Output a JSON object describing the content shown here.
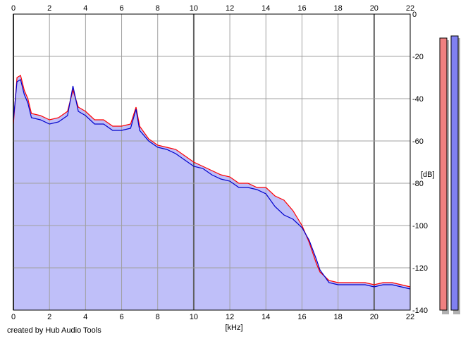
{
  "credit": "created by Hub Audio Tools",
  "chart_data": {
    "type": "area",
    "xlabel": "[kHz]",
    "ylabel": "[dB]",
    "xlim": [
      0,
      22
    ],
    "ylim": [
      -140,
      0
    ],
    "x_ticks": [
      0,
      2,
      4,
      6,
      8,
      10,
      12,
      14,
      16,
      18,
      20,
      22
    ],
    "y_ticks": [
      0,
      -20,
      -40,
      -60,
      -80,
      -100,
      -120,
      -140
    ],
    "y_tick_labels": [
      "0",
      "-20",
      "-40",
      "-60",
      "-80",
      "-100",
      "-120",
      "-140"
    ],
    "grid": true,
    "colors": {
      "fill": "#bfbff9",
      "left_channel": "#ff0000",
      "right_channel": "#0000cc",
      "grid": "#a0a0a0",
      "grid_major": "#606060"
    },
    "series": [
      {
        "color": "#ff0000",
        "x": [
          0,
          0.2,
          0.4,
          0.6,
          0.8,
          1,
          1.5,
          2,
          2.5,
          3,
          3.3,
          3.6,
          4,
          4.5,
          5,
          5.5,
          6,
          6.5,
          6.8,
          7,
          7.5,
          8,
          8.5,
          9,
          9.5,
          10,
          10.5,
          11,
          11.5,
          12,
          12.5,
          13,
          13.5,
          14,
          14.5,
          15,
          15.5,
          16,
          16.4,
          16.8,
          17,
          17.5,
          18,
          18.5,
          19,
          19.5,
          20,
          20.5,
          21,
          21.5,
          22
        ],
        "values": [
          -52,
          -30,
          -29,
          -36,
          -40,
          -47,
          -48,
          -50,
          -49,
          -46,
          -36,
          -44,
          -46,
          -50,
          -50,
          -53,
          -53,
          -52,
          -44,
          -53,
          -59,
          -62,
          -63,
          -64,
          -67,
          -70,
          -72,
          -74,
          -76,
          -77,
          -80,
          -80,
          -82,
          -82,
          -86,
          -88,
          -93,
          -100,
          -108,
          -118,
          -122,
          -126,
          -127,
          -127,
          -127,
          -127,
          -128,
          -127,
          -127,
          -128,
          -129
        ]
      },
      {
        "color": "#0000cc",
        "x": [
          0,
          0.2,
          0.4,
          0.6,
          0.8,
          1,
          1.5,
          2,
          2.5,
          3,
          3.3,
          3.6,
          4,
          4.5,
          5,
          5.5,
          6,
          6.5,
          6.8,
          7,
          7.5,
          8,
          8.5,
          9,
          9.5,
          10,
          10.5,
          11,
          11.5,
          12,
          12.5,
          13,
          13.5,
          14,
          14.5,
          15,
          15.5,
          16,
          16.4,
          16.8,
          17,
          17.5,
          18,
          18.5,
          19,
          19.5,
          20,
          20.5,
          21,
          21.5,
          22
        ],
        "values": [
          -50,
          -32,
          -31,
          -38,
          -42,
          -49,
          -50,
          -52,
          -51,
          -48,
          -34,
          -46,
          -48,
          -52,
          -52,
          -55,
          -55,
          -54,
          -45,
          -55,
          -60,
          -63,
          -64,
          -66,
          -69,
          -72,
          -73,
          -76,
          -78,
          -79,
          -82,
          -82,
          -83,
          -85,
          -91,
          -95,
          -97,
          -101,
          -107,
          -116,
          -121,
          -127,
          -128,
          -128,
          -128,
          -128,
          -129,
          -128,
          -128,
          -129,
          -130
        ]
      }
    ],
    "level_meters": [
      {
        "color": "#f08080"
      },
      {
        "color": "#8080f0"
      }
    ]
  }
}
